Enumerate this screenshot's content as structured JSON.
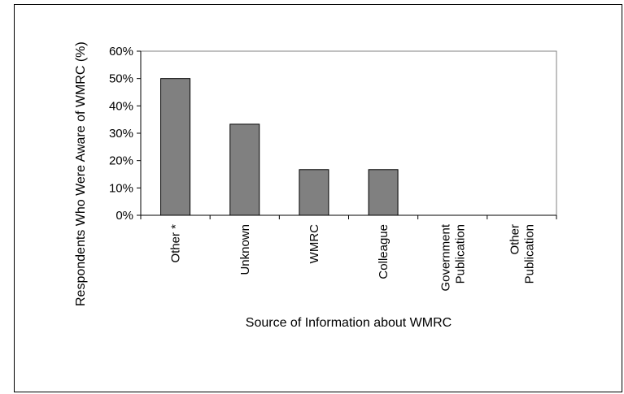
{
  "chart_data": {
    "type": "bar",
    "title": "",
    "xlabel": "Source of Information about WMRC",
    "ylabel": "Respondents Who Were Aware of WMRC (%)",
    "ylim": [
      0,
      60
    ],
    "y_tick_values": [
      0,
      10,
      20,
      30,
      40,
      50,
      60
    ],
    "y_tick_labels": [
      "0%",
      "10%",
      "20%",
      "30%",
      "40%",
      "50%",
      "60%"
    ],
    "categories": [
      "Other *",
      "Unknown",
      "WMRC",
      "Colleague",
      "Government Publication",
      "Other Publication"
    ],
    "category_label_lines": [
      [
        "Other *"
      ],
      [
        "Unknown"
      ],
      [
        "WMRC"
      ],
      [
        "Colleague"
      ],
      [
        "Government",
        "Publication"
      ],
      [
        "Other",
        "Publication"
      ]
    ],
    "values": [
      50,
      33.3,
      16.7,
      16.7,
      0,
      0
    ],
    "grid": false,
    "legend": "none",
    "colors": {
      "bar_fill": "#808080",
      "bar_stroke": "#000000",
      "axis": "#000000",
      "plot_border": "#808080"
    }
  }
}
